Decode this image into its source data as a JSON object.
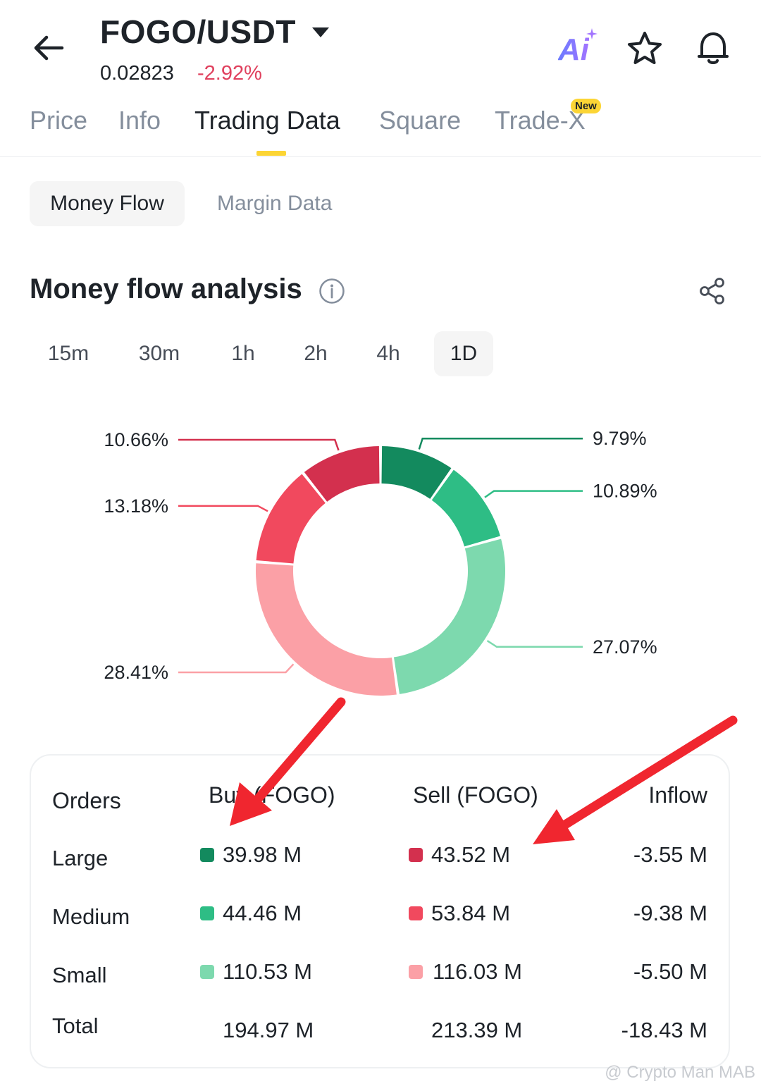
{
  "header": {
    "pair": "FOGO/USDT",
    "price": "0.02823",
    "change": "-2.92%",
    "ai_label": "Ai"
  },
  "tabs": [
    {
      "label": "Price"
    },
    {
      "label": "Info"
    },
    {
      "label": "Trading Data"
    },
    {
      "label": "Square"
    },
    {
      "label": "Trade-X"
    }
  ],
  "new_badge": "New",
  "subtabs": {
    "active": "Money Flow",
    "other": "Margin Data"
  },
  "section": {
    "title": "Money flow analysis"
  },
  "timeframes": [
    "15m",
    "30m",
    "1h",
    "2h",
    "4h",
    "1D"
  ],
  "chart_data": {
    "type": "pie",
    "slices": [
      {
        "label": "9.79%",
        "value": 9.79,
        "color": "#138a5e"
      },
      {
        "label": "10.89%",
        "value": 10.89,
        "color": "#2ebd85"
      },
      {
        "label": "27.07%",
        "value": 27.07,
        "color": "#7dd9ae"
      },
      {
        "label": "28.41%",
        "value": 28.41,
        "color": "#fba0a6"
      },
      {
        "label": "13.18%",
        "value": 13.18,
        "color": "#f1495e"
      },
      {
        "label": "10.66%",
        "value": 10.66,
        "color": "#d3304e"
      }
    ]
  },
  "table": {
    "headers": [
      "Orders",
      "Buy (FOGO)",
      "Sell (FOGO)",
      "Inflow"
    ],
    "rows": [
      {
        "label": "Large",
        "buy": "39.98 M",
        "sell": "43.52 M",
        "inflow": "-3.55 M",
        "buy_color": "#138a5e",
        "sell_color": "#d3304e"
      },
      {
        "label": "Medium",
        "buy": "44.46 M",
        "sell": "53.84 M",
        "inflow": "-9.38 M",
        "buy_color": "#2ebd85",
        "sell_color": "#f1495e"
      },
      {
        "label": "Small",
        "buy": "110.53 M",
        "sell": "116.03 M",
        "inflow": "-5.50 M",
        "buy_color": "#7dd9ae",
        "sell_color": "#fba0a6"
      }
    ],
    "total": {
      "label": "Total",
      "buy": "194.97 M",
      "sell": "213.39 M",
      "inflow": "-18.43 M"
    }
  },
  "watermark": "@ Crypto Man MAB",
  "colors": {
    "accent": "#fcd535",
    "down": "#e0415e",
    "annotation_arrow": "#f0262f"
  }
}
